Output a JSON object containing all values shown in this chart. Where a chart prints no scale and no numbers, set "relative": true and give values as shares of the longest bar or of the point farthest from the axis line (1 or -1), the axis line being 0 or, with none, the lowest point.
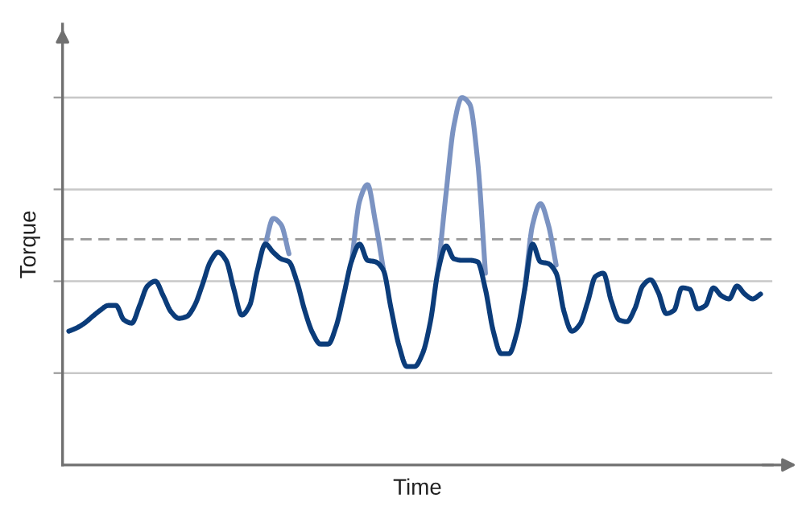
{
  "chart_data": {
    "type": "line",
    "relative": true,
    "xlabel": "Time",
    "ylabel": "Torque",
    "categories": [
      null,
      null,
      null,
      null,
      null,
      null,
      null,
      null,
      null,
      null,
      null,
      null,
      null,
      null,
      null,
      null,
      null,
      null,
      null,
      null,
      null,
      null,
      null,
      null,
      null,
      null,
      null,
      null,
      null,
      null,
      null,
      null,
      null,
      null,
      null,
      null,
      null,
      null,
      null,
      null,
      null,
      null,
      null,
      null,
      null,
      null,
      null,
      null,
      null,
      null,
      null,
      null,
      null,
      null,
      null,
      null,
      null,
      null,
      null,
      null,
      null,
      null,
      null,
      null,
      null,
      null,
      null,
      null,
      null,
      null,
      null,
      null,
      null,
      null,
      null,
      null,
      null,
      null,
      null,
      null,
      null,
      null,
      null,
      null,
      null,
      null,
      null,
      null,
      null
    ],
    "series": [
      {
        "color": "#7b93c2",
        "values": [
          null,
          null,
          null,
          null,
          null,
          null,
          null,
          null,
          null,
          null,
          null,
          null,
          null,
          null,
          null,
          null,
          null,
          null,
          null,
          null,
          null,
          null,
          null,
          null,
          null,
          0.601,
          0.671,
          0.654,
          0.575,
          null,
          null,
          null,
          null,
          null,
          null,
          null,
          0.557,
          0.719,
          0.763,
          0.662,
          0.535,
          null,
          null,
          null,
          null,
          null,
          null,
          0.531,
          0.741,
          0.925,
          1.0,
          0.982,
          0.829,
          0.522,
          null,
          null,
          null,
          null,
          0.478,
          0.654,
          0.711,
          0.654,
          0.544,
          null,
          null,
          null,
          null,
          null,
          null,
          null,
          null,
          null,
          null,
          null,
          null,
          null,
          null,
          null,
          null,
          null,
          null,
          null,
          null,
          null,
          null,
          null,
          null,
          null,
          null
        ]
      },
      {
        "color": "#0b3c7a",
        "values": [
          0.364,
          0.373,
          0.386,
          0.404,
          0.421,
          0.434,
          0.434,
          0.395,
          0.386,
          0.434,
          0.487,
          0.5,
          0.461,
          0.417,
          0.399,
          0.404,
          0.434,
          0.491,
          0.553,
          0.579,
          0.557,
          0.478,
          0.408,
          0.434,
          0.531,
          0.601,
          0.579,
          0.561,
          0.553,
          0.5,
          0.421,
          0.36,
          0.329,
          0.329,
          0.377,
          0.465,
          0.557,
          0.601,
          0.557,
          0.553,
          0.531,
          0.425,
          0.325,
          0.268,
          0.268,
          0.303,
          0.39,
          0.531,
          0.596,
          0.561,
          0.557,
          0.557,
          0.553,
          0.478,
          0.364,
          0.303,
          0.303,
          0.36,
          0.478,
          0.601,
          0.553,
          0.548,
          0.522,
          0.417,
          0.364,
          0.382,
          0.443,
          0.513,
          0.522,
          0.447,
          0.395,
          0.39,
          0.425,
          0.487,
          0.504,
          0.469,
          0.412,
          0.421,
          0.482,
          0.478,
          0.425,
          0.434,
          0.482,
          0.461,
          0.452,
          0.487,
          0.465,
          0.452,
          0.465
        ]
      }
    ],
    "grid": "y",
    "tick_labels": false,
    "ref_lines": [
      {
        "axis": "y",
        "value": 0.614,
        "label": null,
        "color": "#999999",
        "line_style": "dashed"
      }
    ]
  }
}
